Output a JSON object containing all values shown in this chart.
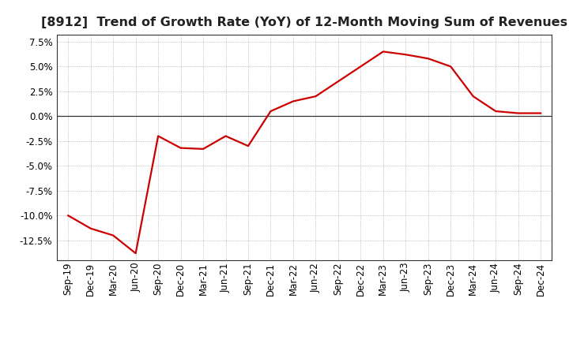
{
  "title": "[8912]  Trend of Growth Rate (YoY) of 12-Month Moving Sum of Revenues",
  "x_labels": [
    "Sep-19",
    "Dec-19",
    "Mar-20",
    "Jun-20",
    "Sep-20",
    "Dec-20",
    "Mar-21",
    "Jun-21",
    "Sep-21",
    "Dec-21",
    "Mar-22",
    "Jun-22",
    "Sep-22",
    "Dec-22",
    "Mar-23",
    "Jun-23",
    "Sep-23",
    "Dec-23",
    "Mar-24",
    "Jun-24",
    "Sep-24",
    "Dec-24"
  ],
  "y_values": [
    -0.1,
    -0.113,
    -0.12,
    -0.138,
    -0.02,
    -0.032,
    -0.033,
    -0.02,
    -0.03,
    0.005,
    0.015,
    0.02,
    0.035,
    0.05,
    0.065,
    0.062,
    0.058,
    0.05,
    0.02,
    0.005,
    0.003,
    0.003
  ],
  "line_color": "#cc0000",
  "line_width": 1.6,
  "background_color": "#ffffff",
  "plot_bg_color": "#ffffff",
  "grid_color": "#999999",
  "ylim": [
    -0.145,
    0.082
  ],
  "yticks": [
    -0.125,
    -0.1,
    -0.075,
    -0.05,
    -0.025,
    0.0,
    0.025,
    0.05,
    0.075
  ],
  "title_fontsize": 11.5,
  "tick_fontsize": 8.5,
  "zero_line_color": "#333333",
  "spine_color": "#333333"
}
